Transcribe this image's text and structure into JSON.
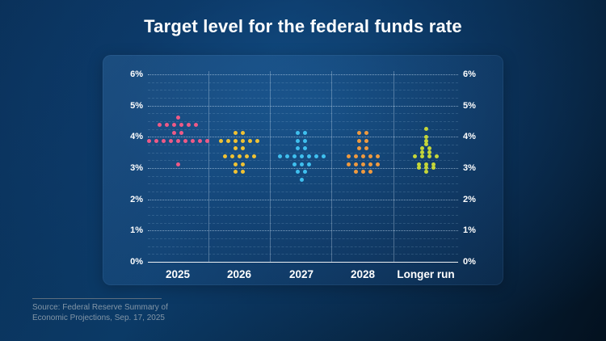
{
  "title": "Target level for the federal funds rate",
  "source": {
    "line1": "Source: Federal Reserve Summary of",
    "line2": "Economic Projections, Sep. 17, 2025"
  },
  "chart_data": {
    "type": "scatter",
    "subtype": "fed-dot-plot",
    "title": "Target level for the federal funds rate",
    "ylim": [
      0,
      6
    ],
    "ytick_step": 1,
    "minor_gridline_step": 0.25,
    "yticks": [
      "6%",
      "5%",
      "4%",
      "3%",
      "2%",
      "1%",
      "0%"
    ],
    "ytick_values": [
      6,
      5,
      4,
      3,
      2,
      1,
      0
    ],
    "grid": "horizontal-dashed, vertical column separators",
    "axis_labels_sides": "left and right",
    "categories": [
      "2025",
      "2026",
      "2027",
      "2028",
      "Longer run"
    ],
    "series": [
      {
        "name": "2025",
        "color": "#ef5a86",
        "dots": [
          {
            "value": 4.625,
            "count": 1
          },
          {
            "value": 4.375,
            "count": 6
          },
          {
            "value": 4.125,
            "count": 2
          },
          {
            "value": 3.875,
            "count": 9
          },
          {
            "value": 3.125,
            "count": 1
          }
        ]
      },
      {
        "name": "2026",
        "color": "#f0c233",
        "dots": [
          {
            "value": 4.125,
            "count": 2
          },
          {
            "value": 3.875,
            "count": 6
          },
          {
            "value": 3.625,
            "count": 2
          },
          {
            "value": 3.375,
            "count": 5
          },
          {
            "value": 3.125,
            "count": 2
          },
          {
            "value": 2.875,
            "count": 2
          }
        ]
      },
      {
        "name": "2027",
        "color": "#3fc0ef",
        "dots": [
          {
            "value": 4.125,
            "count": 2
          },
          {
            "value": 3.875,
            "count": 2
          },
          {
            "value": 3.625,
            "count": 2
          },
          {
            "value": 3.375,
            "count": 7
          },
          {
            "value": 3.125,
            "count": 3
          },
          {
            "value": 2.875,
            "count": 2
          },
          {
            "value": 2.625,
            "count": 1
          }
        ]
      },
      {
        "name": "2028",
        "color": "#ef9a3f",
        "dots": [
          {
            "value": 4.125,
            "count": 2
          },
          {
            "value": 3.875,
            "count": 2
          },
          {
            "value": 3.625,
            "count": 2
          },
          {
            "value": 3.375,
            "count": 5
          },
          {
            "value": 3.125,
            "count": 5
          },
          {
            "value": 2.875,
            "count": 3
          }
        ]
      },
      {
        "name": "Longer run",
        "color": "#c5d639",
        "dots": [
          {
            "value": 4.25,
            "count": 1
          },
          {
            "value": 4.0,
            "count": 1
          },
          {
            "value": 3.875,
            "count": 1
          },
          {
            "value": 3.75,
            "count": 1
          },
          {
            "value": 3.625,
            "count": 2
          },
          {
            "value": 3.5,
            "count": 2
          },
          {
            "value": 3.375,
            "count": 4
          },
          {
            "value": 3.125,
            "count": 3
          },
          {
            "value": 3.0,
            "count": 3
          },
          {
            "value": 2.875,
            "count": 1
          }
        ]
      }
    ]
  }
}
